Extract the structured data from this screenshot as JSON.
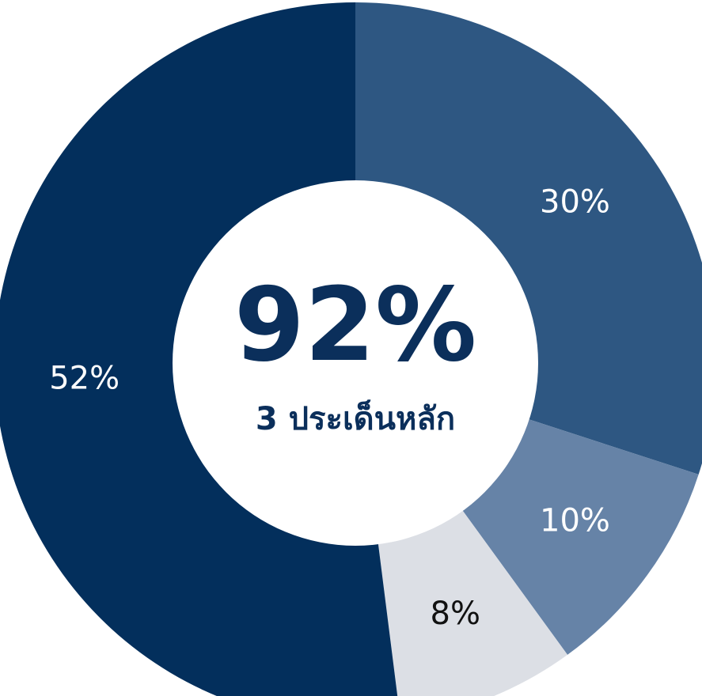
{
  "chart_data": {
    "type": "donut",
    "center_title": "92%",
    "center_subtitle": "3 ประเด็นหลัก",
    "values": [
      30,
      10,
      8,
      52
    ],
    "value_labels": [
      "30%",
      "10%",
      "8%",
      "52%"
    ],
    "colors": [
      "#2e5782",
      "#6683a7",
      "#dcdfe5",
      "#032f5c"
    ]
  }
}
